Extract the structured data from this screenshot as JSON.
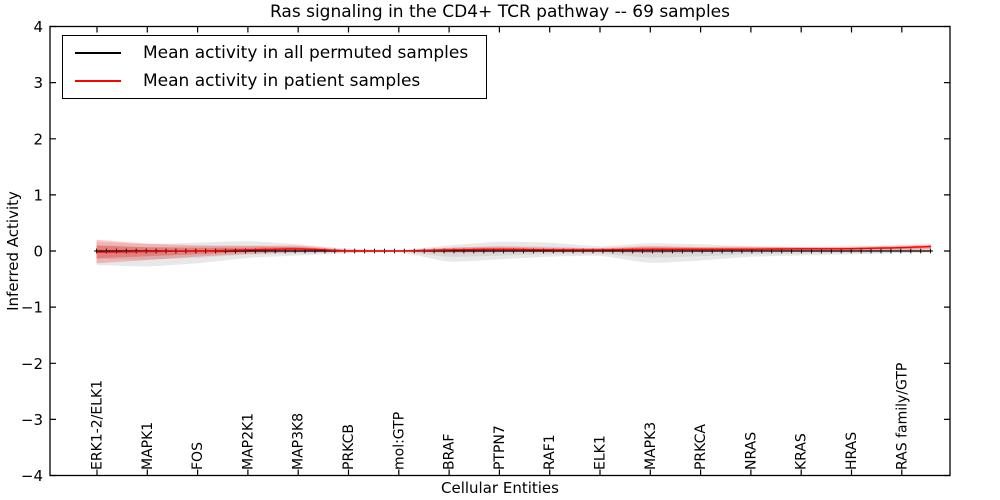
{
  "figure": {
    "title": "Ras signaling in the CD4+ TCR pathway -- 69 samples",
    "xlabel": "Cellular Entities",
    "ylabel": "Inferred Activity"
  },
  "legend": {
    "position": "upper left",
    "entries": [
      {
        "label": "Mean activity in all permuted samples",
        "color": "#000000"
      },
      {
        "label": "Mean activity in patient samples",
        "color": "#ff0000"
      }
    ]
  },
  "chart_data": {
    "type": "line",
    "title": "Ras signaling in the CD4+ TCR pathway -- 69 samples",
    "xlabel": "Cellular Entities",
    "ylabel": "Inferred Activity",
    "ylim": [
      -4,
      4
    ],
    "yticks": [
      4,
      3,
      2,
      1,
      0,
      -1,
      -2,
      -3,
      -4
    ],
    "ytick_labels": [
      "4",
      "3",
      "2",
      "1",
      "0",
      "−1",
      "−2",
      "−3",
      "−4"
    ],
    "grid": false,
    "legend_position": "upper left",
    "categories": [
      "ERK1-2/ELK1",
      "MAPK1",
      "FOS",
      "MAP2K1",
      "MAP3K8",
      "PRKCB",
      "mol:GTP",
      "BRAF",
      "PTPN7",
      "RAF1",
      "ELK1",
      "MAPK3",
      "PRKCA",
      "NRAS",
      "KRAS",
      "HRAS",
      "RAS family/GTP"
    ],
    "series": [
      {
        "name": "Mean activity in all permuted samples",
        "color": "#000000",
        "marker": "plus",
        "band_color": "#808080",
        "values": [
          0,
          0,
          0,
          0,
          0,
          0,
          0,
          0,
          0,
          0,
          0,
          0,
          0,
          0,
          0,
          0,
          0
        ],
        "tail_value": 0,
        "band_upper": [
          0.16,
          0.12,
          0.15,
          0.18,
          0.12,
          0.04,
          0.01,
          0.1,
          0.17,
          0.15,
          0.08,
          0.14,
          0.12,
          0.08,
          0.06,
          0.05,
          0.05
        ],
        "tail_upper": 0.05,
        "band_lower": [
          -0.25,
          -0.28,
          -0.22,
          -0.12,
          -0.08,
          -0.04,
          -0.01,
          -0.2,
          -0.15,
          -0.1,
          -0.08,
          -0.22,
          -0.17,
          -0.1,
          -0.08,
          -0.06,
          -0.04
        ],
        "tail_lower": -0.03
      },
      {
        "name": "Mean activity in patient samples",
        "color": "#ff0000",
        "marker": "none",
        "band_color": "#ff0000",
        "values": [
          -0.02,
          -0.01,
          0.0,
          0.02,
          0.04,
          0.0,
          0.0,
          0.02,
          0.03,
          0.02,
          0.02,
          0.03,
          0.03,
          0.03,
          0.04,
          0.04,
          0.06
        ],
        "tail_value": 0.08,
        "band_upper": [
          0.2,
          0.13,
          0.1,
          0.09,
          0.1,
          0.02,
          0.01,
          0.06,
          0.08,
          0.06,
          0.05,
          0.09,
          0.07,
          0.08,
          0.07,
          0.08,
          0.1
        ],
        "tail_upper": 0.12,
        "band_lower": [
          -0.22,
          -0.16,
          -0.1,
          -0.05,
          -0.02,
          -0.02,
          -0.01,
          -0.03,
          -0.02,
          -0.02,
          -0.01,
          -0.04,
          -0.02,
          0.0,
          0.0,
          0.01,
          0.02
        ],
        "tail_lower": 0.03
      }
    ]
  }
}
